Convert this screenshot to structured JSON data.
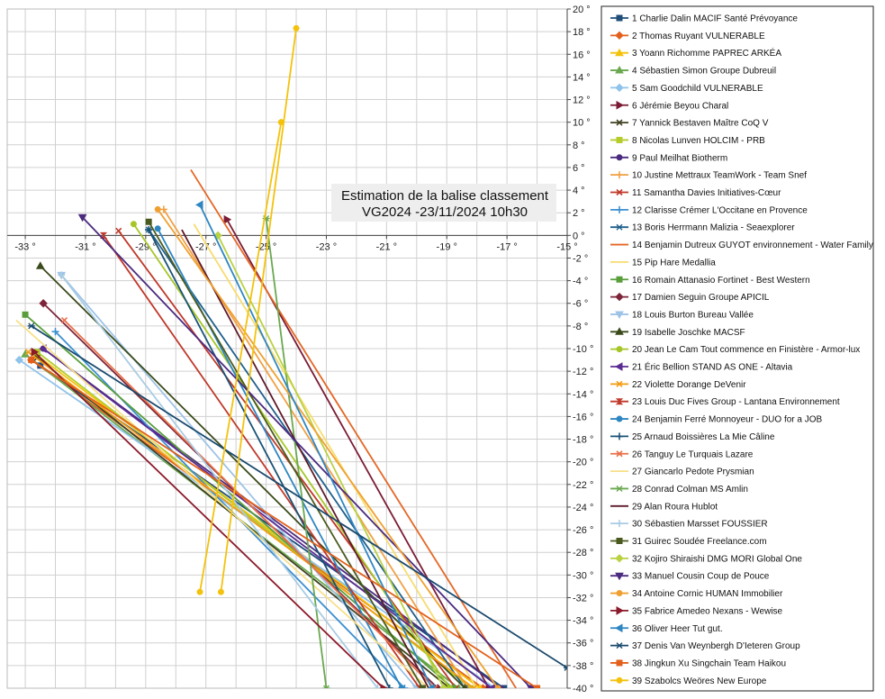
{
  "chart_data": {
    "type": "line",
    "title_lines": [
      "Estimation de la balise classement",
      "VG2024 -23/11/2024 10h30"
    ],
    "xlabel": "",
    "ylabel": "",
    "x_tick_labels": [
      "-33 °",
      "-31 °",
      "-29 °",
      "-27 °",
      "-25 °",
      "-23 °",
      "-21 °",
      "-19 °",
      "-17 °",
      "-15 °"
    ],
    "y_tick_labels": [
      "20 °",
      "18 °",
      "16 °",
      "14 °",
      "12 °",
      "10 °",
      "8 °",
      "6 °",
      "4 °",
      "2 °",
      "0 °",
      "-2 °",
      "-4 °",
      "-6 °",
      "-8 °",
      "-10 °",
      "-12 °",
      "-14 °",
      "-16 °",
      "-18 °",
      "-20 °",
      "-22 °",
      "-24 °",
      "-26 °",
      "-28 °",
      "-30 °",
      "-32 °",
      "-34 °",
      "-36 °",
      "-38 °",
      "-40 °"
    ],
    "xlim": [
      -33.6,
      -15
    ],
    "ylim": [
      -40,
      20
    ],
    "grid": true,
    "legend_position": "right",
    "series": [
      {
        "name": "1 Charlie Dalin MACIF Santé Prévoyance",
        "color": "#1f4e79",
        "marker": "square",
        "x": [
          -32.5,
          -17.1
        ],
        "y": [
          -11.5,
          -40
        ]
      },
      {
        "name": "2 Thomas Ruyant VULNERABLE",
        "color": "#e2601c",
        "marker": "diamond",
        "x": [
          -32.8,
          -17.8
        ],
        "y": [
          -11.0,
          -40
        ]
      },
      {
        "name": "3 Yoann Richomme PAPREC ARKÉA",
        "color": "#f4c20d",
        "marker": "triangle",
        "x": [
          -32.6,
          -17.9
        ],
        "y": [
          -10.6,
          -40
        ]
      },
      {
        "name": "4 Sébastien Simon Groupe Dubreuil",
        "color": "#6aa84f",
        "marker": "triangle",
        "x": [
          -33.0,
          -18.6
        ],
        "y": [
          -10.5,
          -40
        ]
      },
      {
        "name": "5 Sam Goodchild VULNERABLE",
        "color": "#8fc3ea",
        "marker": "diamond",
        "x": [
          -33.2,
          -17.4
        ],
        "y": [
          -11.0,
          -40
        ]
      },
      {
        "name": "6 Jérémie Beyou Charal",
        "color": "#7b1c35",
        "marker": "triangle-right",
        "x": [
          -26.3,
          -17.6
        ],
        "y": [
          1.4,
          -40
        ]
      },
      {
        "name": "7 Yannick Bestaven Maître CoQ V",
        "color": "#404020",
        "marker": "cross",
        "x": [
          -32.6,
          -18.9
        ],
        "y": [
          -10.8,
          -40
        ]
      },
      {
        "name": "8 Nicolas Lunven HOLCIM - PRB",
        "color": "#b5cc2b",
        "marker": "square",
        "x": [
          -32.6,
          -18.2
        ],
        "y": [
          -10.3,
          -40
        ]
      },
      {
        "name": "9 Paul Meilhat Biotherm",
        "color": "#4b2a7f",
        "marker": "circle",
        "x": [
          -32.4,
          -17.2
        ],
        "y": [
          -10.0,
          -40
        ]
      },
      {
        "name": "10 Justine Mettraux TeamWork - Team Snef",
        "color": "#f0a045",
        "marker": "plus",
        "x": [
          -28.4,
          -18.3
        ],
        "y": [
          2.3,
          -40
        ]
      },
      {
        "name": "11 Samantha Davies Initiatives-Cœur",
        "color": "#c0392b",
        "marker": "cross",
        "x": [
          -29.9,
          -18.7
        ],
        "y": [
          0.4,
          -40
        ]
      },
      {
        "name": "12 Clarisse Crémer L'Occitane en Provence",
        "color": "#3d8fd1",
        "marker": "plus",
        "x": [
          -32.0,
          -20.4
        ],
        "y": [
          -8.5,
          -40
        ]
      },
      {
        "name": "13 Boris Herrmann Malizia - Seaexplorer",
        "color": "#1f5f8b",
        "marker": "star",
        "x": [
          -28.9,
          -18.4
        ],
        "y": [
          0.5,
          -40
        ]
      },
      {
        "name": "14 Benjamin Dutreux GUYOT environnement - Water Family",
        "color": "#e46726",
        "marker": "none",
        "x": [
          -27.5,
          -16.7
        ],
        "y": [
          5.8,
          -40
        ]
      },
      {
        "name": "15 Pip Hare Medallia",
        "color": "#f7dc6f",
        "marker": "none",
        "x": [
          -27.4,
          -18.0
        ],
        "y": [
          1.0,
          -40
        ]
      },
      {
        "name": "16 Romain Attanasio Fortinet - Best Western",
        "color": "#5a9e3c",
        "marker": "square",
        "x": [
          -33.0,
          -18.8
        ],
        "y": [
          -7.0,
          -40
        ]
      },
      {
        "name": "17 Damien Seguin Groupe APICIL",
        "color": "#7d2438",
        "marker": "diamond",
        "x": [
          -32.4,
          -19.3
        ],
        "y": [
          -6.0,
          -40
        ]
      },
      {
        "name": "18 Louis Burton Bureau Vallée",
        "color": "#9dc3e6",
        "marker": "triangle-down",
        "x": [
          -31.8,
          -20.0
        ],
        "y": [
          -3.5,
          -40
        ]
      },
      {
        "name": "19 Isabelle Joschke MACSF",
        "color": "#3a4a1a",
        "marker": "triangle",
        "x": [
          -32.5,
          -18.4
        ],
        "y": [
          -2.7,
          -40
        ]
      },
      {
        "name": "20 Jean Le Cam Tout commence en Finistère - Armor-lux",
        "color": "#a6c628",
        "marker": "circle",
        "x": [
          -29.4,
          -18.9
        ],
        "y": [
          1.0,
          -40
        ]
      },
      {
        "name": "21 Éric Bellion STAND AS ONE - Altavia",
        "color": "#5b2c91",
        "marker": "triangle-left",
        "x": [
          -32.4,
          -17.5
        ],
        "y": [
          -10.0,
          -40
        ]
      },
      {
        "name": "22 Violette Dorange DeVenir",
        "color": "#f39c12",
        "marker": "cross",
        "x": [
          -32.9,
          -18.1
        ],
        "y": [
          -10.3,
          -40
        ]
      },
      {
        "name": "23 Louis Duc Fives Group - Lantana Environnement",
        "color": "#c0392b",
        "marker": "hourglass",
        "x": [
          -30.4,
          -19.9
        ],
        "y": [
          0.0,
          -40
        ]
      },
      {
        "name": "24 Benjamin Ferré Monnoyeur - DUO for a JOB",
        "color": "#2e86c1",
        "marker": "circle",
        "x": [
          -28.6,
          -20.5
        ],
        "y": [
          0.6,
          -40
        ]
      },
      {
        "name": "25 Arnaud Boissières La Mie Câline",
        "color": "#1a5276",
        "marker": "plus",
        "x": [
          -28.9,
          -20.9
        ],
        "y": [
          0.5,
          -40
        ]
      },
      {
        "name": "26 Tanguy Le Turquais Lazare",
        "color": "#e8704a",
        "marker": "cross",
        "x": [
          -31.7,
          -19.4
        ],
        "y": [
          -7.5,
          -40
        ]
      },
      {
        "name": "27 Giancarlo Pedote Prysmian",
        "color": "#f7e08a",
        "marker": "none",
        "x": [
          -33.3,
          -19.6
        ],
        "y": [
          -7.5,
          -40
        ]
      },
      {
        "name": "28 Conrad Colman MS Amlin",
        "color": "#6aa84f",
        "marker": "star",
        "x": [
          -25.0,
          -23.0
        ],
        "y": [
          1.5,
          -40
        ]
      },
      {
        "name": "29 Alan Roura Hublot",
        "color": "#5d1a2a",
        "marker": "none",
        "x": [
          -27.8,
          -19.6
        ],
        "y": [
          0.5,
          -40
        ]
      },
      {
        "name": "30 Sébastien Marsset FOUSSIER",
        "color": "#a9cce3",
        "marker": "plus",
        "x": [
          -31.8,
          -21.3
        ],
        "y": [
          -3.5,
          -40
        ]
      },
      {
        "name": "31 Guirec Soudée Freelance.com",
        "color": "#4a5a1e",
        "marker": "square",
        "x": [
          -28.9,
          -19.8
        ],
        "y": [
          1.2,
          -40
        ]
      },
      {
        "name": "32 Kojiro Shiraishi DMG MORI Global One",
        "color": "#b9d142",
        "marker": "diamond",
        "x": [
          -26.6,
          -19.1
        ],
        "y": [
          0.0,
          -40
        ]
      },
      {
        "name": "33 Manuel Cousin Coup de Pouce",
        "color": "#4b2a7f",
        "marker": "triangle-down",
        "x": [
          -31.1,
          -16.2
        ],
        "y": [
          1.6,
          -40
        ]
      },
      {
        "name": "34 Antoine Cornic HUMAN Immobilier",
        "color": "#f0a030",
        "marker": "circle",
        "x": [
          -28.6,
          -17.3
        ],
        "y": [
          2.3,
          -40
        ]
      },
      {
        "name": "35 Fabrice Amedeo Nexans - Wewise",
        "color": "#8b1a2a",
        "marker": "triangle-right",
        "x": [
          -32.7,
          -21.1
        ],
        "y": [
          -10.3,
          -40
        ]
      },
      {
        "name": "36 Oliver Heer Tut gut.",
        "color": "#2e86c1",
        "marker": "triangle-left",
        "x": [
          -27.2,
          -19.5
        ],
        "y": [
          2.7,
          -40
        ]
      },
      {
        "name": "37 Denis Van Weynbergh D'Ieteren Group",
        "color": "#1a4a6e",
        "marker": "star",
        "x": [
          -32.8,
          -15.0
        ],
        "y": [
          -8.0,
          -38.2
        ]
      },
      {
        "name": "38 Jingkun Xu Singchain Team Haikou",
        "color": "#e2601c",
        "marker": "square",
        "x": [
          -32.8,
          -16.0
        ],
        "y": [
          -11.0,
          -40
        ]
      },
      {
        "name": "39 Szabolcs Weöres New Europe",
        "color": "#f4c20d",
        "marker": "circle",
        "x": [
          -26.5,
          -24.0
        ],
        "y": [
          -31.5,
          18.3
        ]
      },
      {
        "name": "",
        "color": "#f4c20d",
        "marker": "circle",
        "x": [
          -27.2,
          -24.5
        ],
        "y": [
          -31.5,
          10.0
        ]
      }
    ]
  }
}
